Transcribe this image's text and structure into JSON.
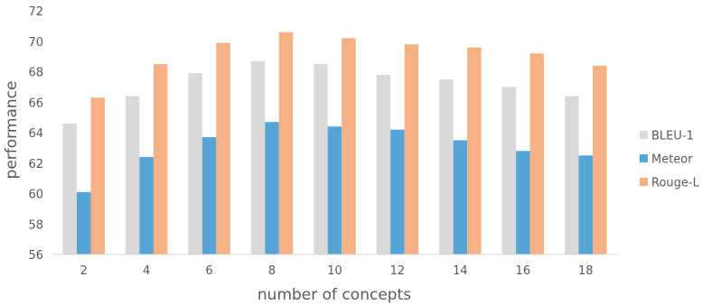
{
  "chart_data": {
    "type": "bar",
    "title": "",
    "xlabel": "number of concepts",
    "ylabel": "performance",
    "categories": [
      "2",
      "4",
      "6",
      "8",
      "10",
      "12",
      "14",
      "16",
      "18"
    ],
    "ylim": [
      56,
      72
    ],
    "yticks": [
      56,
      58,
      60,
      62,
      64,
      66,
      68,
      70,
      72
    ],
    "grid": false,
    "legend_position": "right",
    "series": [
      {
        "name": "BLEU-1",
        "color": "#d9d9d9",
        "values": [
          64.6,
          66.4,
          67.9,
          68.7,
          68.5,
          67.8,
          67.5,
          67.0,
          66.4
        ]
      },
      {
        "name": "Meteor",
        "color": "#56a5d6",
        "values": [
          60.1,
          62.4,
          63.7,
          64.7,
          64.4,
          64.2,
          63.5,
          62.8,
          62.5
        ]
      },
      {
        "name": "Rouge-L",
        "color": "#f4b183",
        "values": [
          66.3,
          68.5,
          69.9,
          70.6,
          70.2,
          69.8,
          69.6,
          69.2,
          68.4
        ]
      }
    ]
  }
}
